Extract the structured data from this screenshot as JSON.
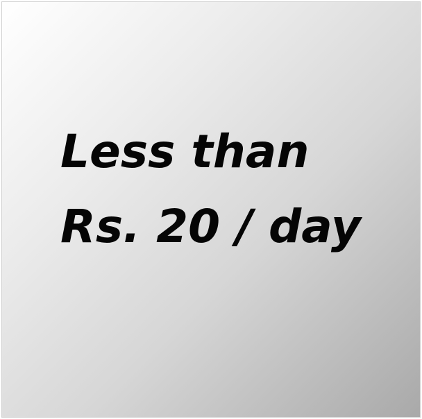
{
  "slide": {
    "line1": "Less than",
    "line2": "Rs. 20 / day"
  }
}
